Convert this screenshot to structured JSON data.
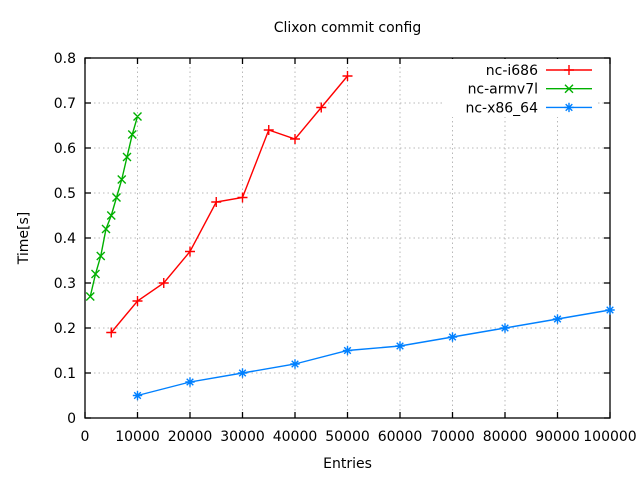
{
  "title": "Clixon commit config",
  "chart_data": {
    "type": "line",
    "title": "Clixon commit config",
    "xlabel": "Entries",
    "ylabel": "Time[s]",
    "xlim": [
      0,
      100000
    ],
    "ylim": [
      0,
      0.8
    ],
    "xticks": [
      0,
      10000,
      20000,
      30000,
      40000,
      50000,
      60000,
      70000,
      80000,
      90000,
      100000
    ],
    "yticks": [
      0,
      0.1,
      0.2,
      0.3,
      0.4,
      0.5,
      0.6,
      0.7,
      0.8
    ],
    "grid": true,
    "grid_color": "#b8b8b8",
    "background": "#ffffff",
    "border_color": "#000000",
    "legend_position": "top-right-inside",
    "series": [
      {
        "name": "nc-i686",
        "color": "#ff0000",
        "marker": "plus",
        "x": [
          5000,
          10000,
          15000,
          20000,
          25000,
          30000,
          35000,
          40000,
          45000,
          50000
        ],
        "y": [
          0.19,
          0.26,
          0.3,
          0.37,
          0.48,
          0.49,
          0.64,
          0.62,
          0.69,
          0.76
        ]
      },
      {
        "name": "nc-armv7l",
        "color": "#00b000",
        "marker": "cross",
        "x": [
          1000,
          2000,
          3000,
          4000,
          5000,
          6000,
          7000,
          8000,
          9000,
          10000
        ],
        "y": [
          0.27,
          0.32,
          0.36,
          0.42,
          0.45,
          0.49,
          0.53,
          0.58,
          0.63,
          0.67
        ]
      },
      {
        "name": "nc-x86_64",
        "color": "#0080ff",
        "marker": "asterisk",
        "x": [
          10000,
          20000,
          30000,
          40000,
          50000,
          60000,
          70000,
          80000,
          90000,
          100000
        ],
        "y": [
          0.05,
          0.08,
          0.1,
          0.12,
          0.15,
          0.16,
          0.18,
          0.2,
          0.22,
          0.24
        ]
      }
    ]
  }
}
